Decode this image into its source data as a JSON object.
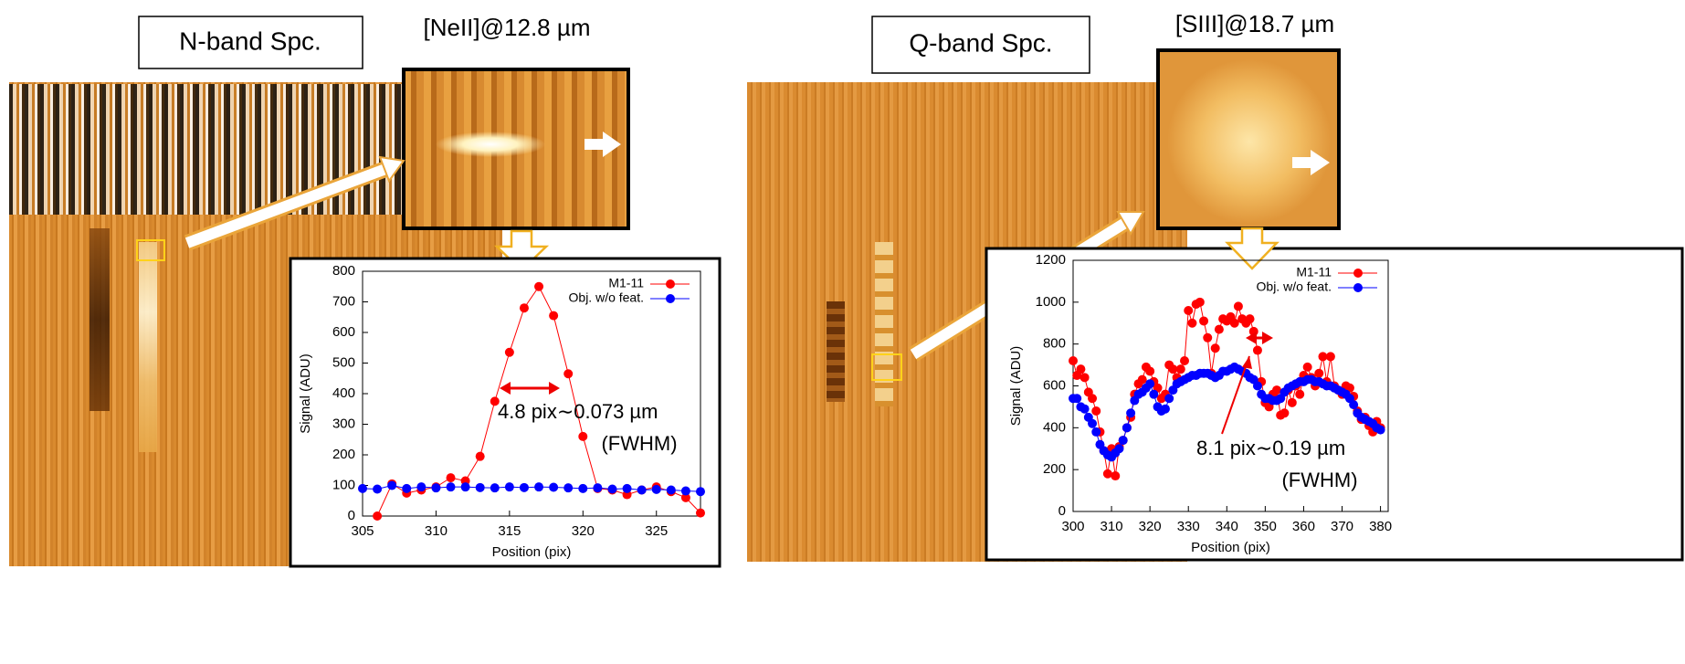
{
  "panels": [
    {
      "band": "N-band Spc.",
      "line": "[NeII]@12.8 µm"
    },
    {
      "band": "Q-band Spc.",
      "line": "[SIII]@18.7 µm"
    }
  ],
  "chart_data": [
    {
      "type": "line",
      "x_label": "Position (pix)",
      "y_label": "Signal (ADU)",
      "legend": "upper right",
      "x": [
        305,
        306,
        307,
        308,
        309,
        310,
        311,
        312,
        313,
        314,
        315,
        316,
        317,
        318,
        319,
        320,
        321,
        322,
        323,
        324,
        325,
        326,
        327,
        328
      ],
      "xlim": [
        305,
        328
      ],
      "xticks": [
        305,
        310,
        315,
        320,
        325
      ],
      "ylim": [
        0,
        800
      ],
      "yticks": [
        0,
        100,
        200,
        300,
        400,
        500,
        600,
        700,
        800
      ],
      "series": [
        {
          "name": "M1-11",
          "color": "#ff0000",
          "values": [
            null,
            0,
            105,
            75,
            85,
            95,
            125,
            115,
            195,
            375,
            535,
            680,
            750,
            655,
            465,
            260,
            90,
            85,
            70,
            85,
            95,
            80,
            60,
            10
          ]
        },
        {
          "name": "Obj. w/o feat.",
          "color": "#0000ff",
          "values": [
            90,
            88,
            100,
            90,
            95,
            92,
            95,
            95,
            93,
            92,
            95,
            93,
            95,
            94,
            92,
            90,
            92,
            88,
            90,
            85,
            87,
            85,
            82,
            80
          ]
        }
      ],
      "annotations": [
        "4.8 pix∼0.073 µm",
        "(FWHM)"
      ]
    },
    {
      "type": "line",
      "x_label": "Position (pix)",
      "y_label": "Signal (ADU)",
      "legend": "upper right",
      "x": [
        300,
        301,
        302,
        303,
        304,
        305,
        306,
        307,
        308,
        309,
        310,
        311,
        312,
        313,
        314,
        315,
        316,
        317,
        318,
        319,
        320,
        321,
        322,
        323,
        324,
        325,
        326,
        327,
        328,
        329,
        330,
        331,
        332,
        333,
        334,
        335,
        336,
        337,
        338,
        339,
        340,
        341,
        342,
        343,
        344,
        345,
        346,
        347,
        348,
        349,
        350,
        351,
        352,
        353,
        354,
        355,
        356,
        357,
        358,
        359,
        360,
        361,
        362,
        363,
        364,
        365,
        366,
        367,
        368,
        369,
        370,
        371,
        372,
        373,
        374,
        375,
        376,
        377,
        378,
        379,
        380
      ],
      "xlim": [
        300,
        382
      ],
      "xticks": [
        300,
        310,
        320,
        330,
        340,
        350,
        360,
        370,
        380
      ],
      "ylim": [
        0,
        1200
      ],
      "yticks": [
        0,
        200,
        400,
        600,
        800,
        1000,
        1200
      ],
      "series": [
        {
          "name": "M1-11",
          "color": "#ff0000",
          "values": [
            720,
            650,
            680,
            640,
            570,
            540,
            480,
            380,
            290,
            180,
            300,
            170,
            310,
            340,
            400,
            450,
            560,
            610,
            630,
            690,
            670,
            620,
            590,
            540,
            560,
            700,
            680,
            640,
            680,
            720,
            960,
            900,
            990,
            1000,
            910,
            830,
            660,
            780,
            870,
            920,
            910,
            930,
            900,
            980,
            920,
            900,
            920,
            860,
            770,
            620,
            520,
            500,
            560,
            580,
            460,
            470,
            580,
            520,
            600,
            560,
            650,
            690,
            640,
            600,
            660,
            740,
            620,
            740,
            600,
            580,
            560,
            600,
            590,
            550,
            480,
            440,
            450,
            410,
            380,
            430,
            400
          ]
        },
        {
          "name": "Obj. w/o feat.",
          "color": "#0000ff",
          "values": [
            540,
            540,
            500,
            490,
            450,
            420,
            380,
            320,
            290,
            270,
            260,
            280,
            300,
            340,
            400,
            470,
            530,
            560,
            570,
            590,
            610,
            560,
            500,
            480,
            490,
            540,
            580,
            610,
            620,
            630,
            640,
            650,
            650,
            660,
            660,
            660,
            650,
            640,
            650,
            670,
            670,
            680,
            690,
            680,
            670,
            660,
            640,
            630,
            600,
            560,
            540,
            540,
            530,
            530,
            540,
            570,
            590,
            600,
            610,
            620,
            620,
            630,
            630,
            620,
            620,
            610,
            600,
            600,
            590,
            580,
            570,
            560,
            540,
            510,
            470,
            450,
            440,
            430,
            420,
            400,
            390
          ]
        }
      ],
      "annotations": [
        "8.1 pix∼0.19 µm",
        "(FWHM)"
      ]
    }
  ]
}
